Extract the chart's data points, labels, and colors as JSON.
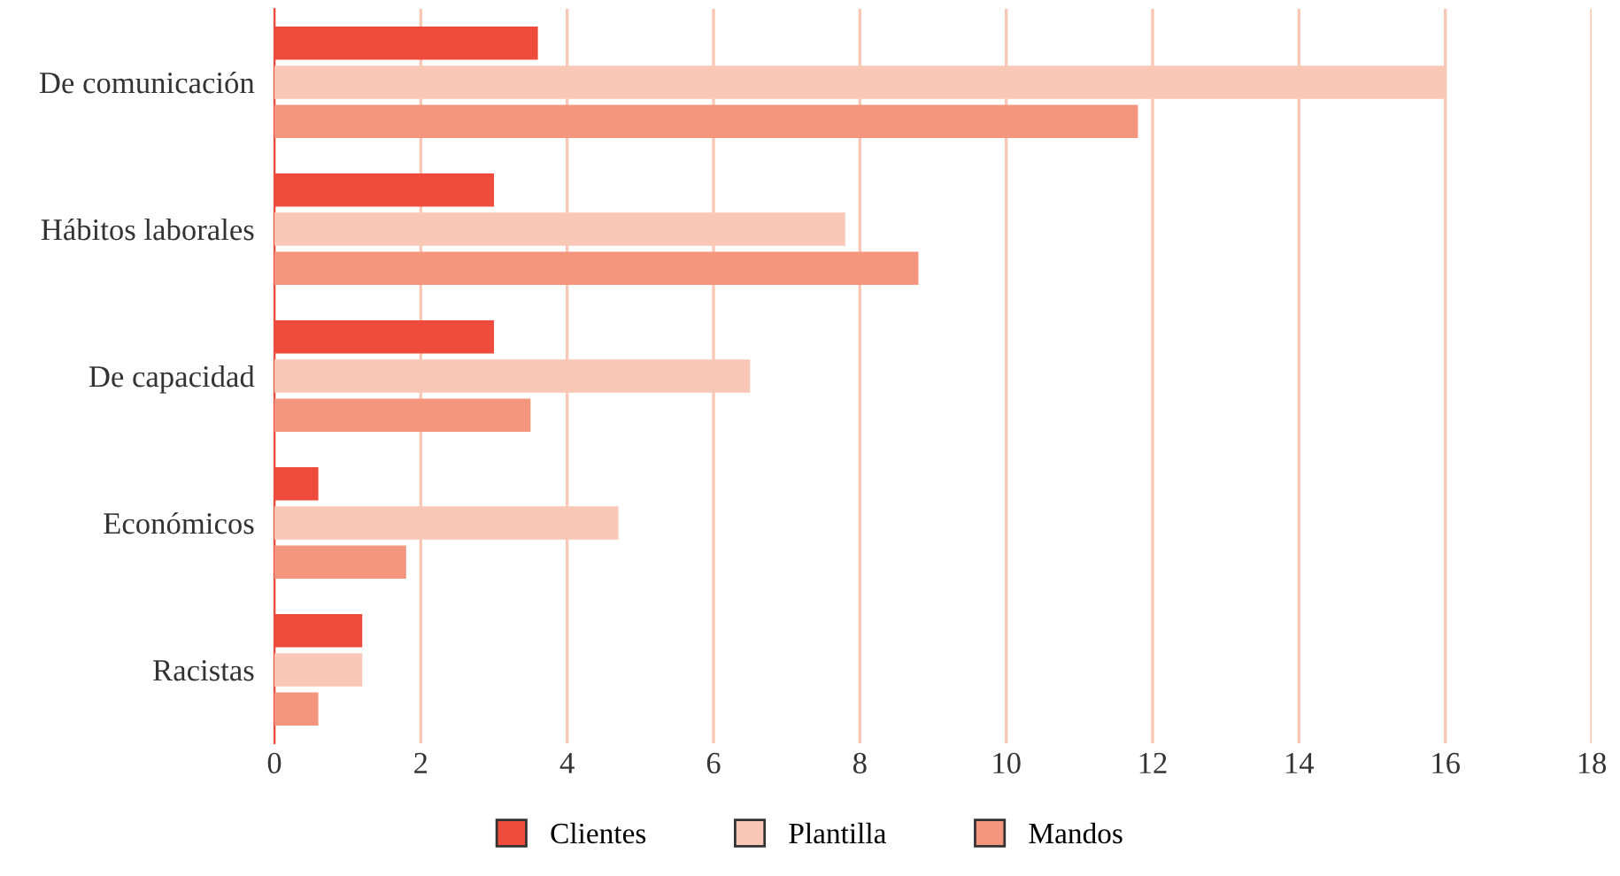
{
  "chart_data": {
    "type": "bar",
    "orientation": "horizontal",
    "categories": [
      "De comunicación",
      "Hábitos laborales",
      "De capacidad",
      "Económicos",
      "Racistas"
    ],
    "series": [
      {
        "name": "Clientes",
        "color": "#ef4b3c",
        "values": [
          3.6,
          3.0,
          3.0,
          0.6,
          1.2
        ]
      },
      {
        "name": "Plantilla",
        "color": "#f9c7b5",
        "values": [
          16.0,
          7.8,
          6.5,
          4.7,
          1.2
        ]
      },
      {
        "name": "Mandos",
        "color": "#f4957e",
        "values": [
          11.8,
          8.8,
          3.5,
          1.8,
          0.6
        ]
      }
    ],
    "xlim": [
      0,
      18
    ],
    "xticks": [
      0,
      2,
      4,
      6,
      8,
      10,
      12,
      14,
      16,
      18
    ],
    "grid": "x",
    "legend": "bottom"
  }
}
